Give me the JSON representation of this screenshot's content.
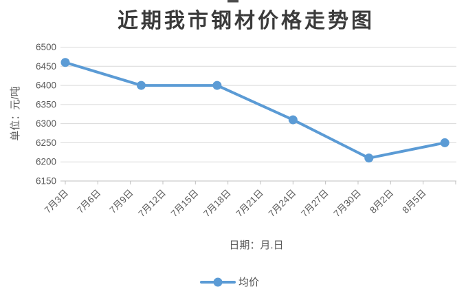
{
  "chart_data": {
    "type": "line",
    "title": "近期我市钢材价格走势图",
    "xlabel": "日期：月.日",
    "ylabel": "单位：元/吨",
    "x_tick_labels": [
      "7月3日",
      "7月6日",
      "7月9日",
      "7月12日",
      "7月15日",
      "7月18日",
      "7月21日",
      "7月24日",
      "7月27日",
      "7月30日",
      "8月2日",
      "8月5日"
    ],
    "x_tick_interval_days": 3,
    "x_axis_extra_end_tick": true,
    "y_ticks": [
      6150,
      6200,
      6250,
      6300,
      6350,
      6400,
      6450,
      6500
    ],
    "ylim": [
      6150,
      6500
    ],
    "grid": "horizontal",
    "legend_position": "bottom",
    "series": [
      {
        "name": "均价",
        "color": "#5b9bd5",
        "points": [
          {
            "days_from_start": 0,
            "value": 6460
          },
          {
            "days_from_start": 7,
            "value": 6400
          },
          {
            "days_from_start": 14,
            "value": 6400
          },
          {
            "days_from_start": 21,
            "value": 6310
          },
          {
            "days_from_start": 28,
            "value": 6210
          },
          {
            "days_from_start": 35,
            "value": 6250
          }
        ]
      }
    ],
    "colors": {
      "line": "#5b9bd5",
      "grid": "#d9d9d9",
      "axis": "#bfbfbf",
      "tick_text": "#595959",
      "title_text": "#3a3a3a"
    }
  }
}
